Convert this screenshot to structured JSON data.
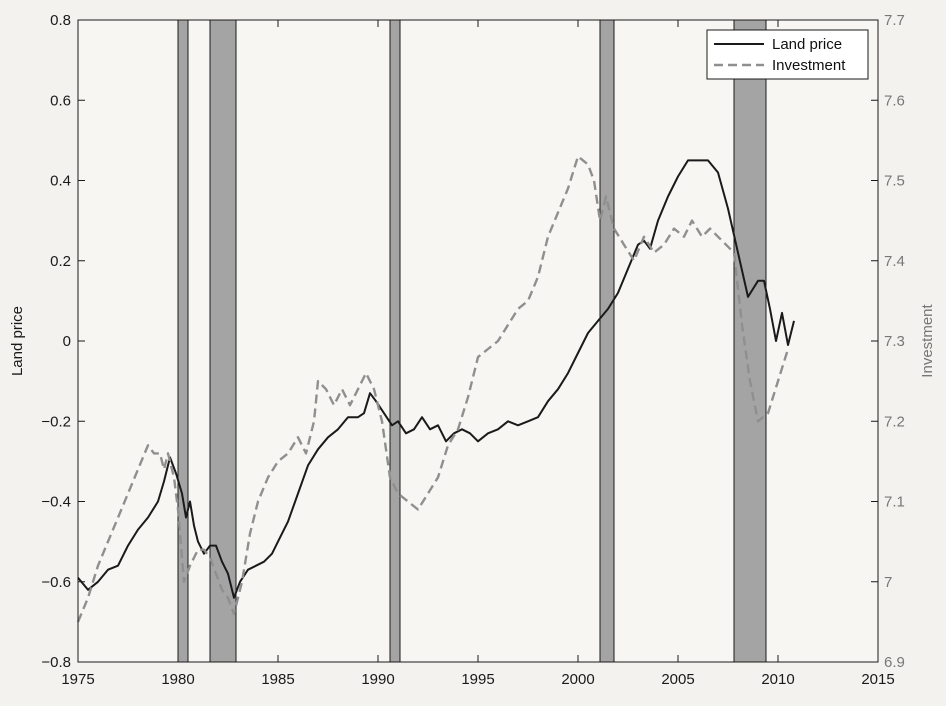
{
  "chart_data": {
    "type": "line",
    "title": "",
    "xlabel": "",
    "ylabel": "Land price",
    "y2label": "Investment",
    "xlim": [
      1975,
      2015
    ],
    "ylim": [
      -0.8,
      0.8
    ],
    "y2lim": [
      6.9,
      7.7
    ],
    "grid": false,
    "legend_position": "top-right",
    "x_ticks": [
      "1975",
      "1980",
      "1985",
      "1990",
      "1995",
      "2000",
      "2005",
      "2010",
      "2015"
    ],
    "y_ticks": [
      "−0.8",
      "−0.6",
      "−0.4",
      "−0.2",
      "0",
      "0.2",
      "0.4",
      "0.6",
      "0.8"
    ],
    "y2_ticks": [
      "6.9",
      "7",
      "7.1",
      "7.2",
      "7.3",
      "7.4",
      "7.5",
      "7.6",
      "7.7"
    ],
    "recession_bands": [
      [
        1980.0,
        1980.5
      ],
      [
        1981.6,
        1982.9
      ],
      [
        1990.6,
        1991.1
      ],
      [
        2001.1,
        2001.8
      ],
      [
        2007.8,
        2009.4
      ]
    ],
    "series": [
      {
        "name": "Land price",
        "axis": "left",
        "style": "solid",
        "color": "#1a1a1a",
        "points": [
          [
            1975.0,
            -0.59
          ],
          [
            1975.5,
            -0.62
          ],
          [
            1976.0,
            -0.6
          ],
          [
            1976.5,
            -0.57
          ],
          [
            1977.0,
            -0.56
          ],
          [
            1977.5,
            -0.51
          ],
          [
            1978.0,
            -0.47
          ],
          [
            1978.5,
            -0.44
          ],
          [
            1979.0,
            -0.4
          ],
          [
            1979.3,
            -0.35
          ],
          [
            1979.6,
            -0.29
          ],
          [
            1979.9,
            -0.33
          ],
          [
            1980.2,
            -0.38
          ],
          [
            1980.4,
            -0.44
          ],
          [
            1980.6,
            -0.4
          ],
          [
            1980.8,
            -0.46
          ],
          [
            1981.0,
            -0.5
          ],
          [
            1981.3,
            -0.53
          ],
          [
            1981.6,
            -0.51
          ],
          [
            1981.9,
            -0.51
          ],
          [
            1982.2,
            -0.55
          ],
          [
            1982.5,
            -0.58
          ],
          [
            1982.8,
            -0.64
          ],
          [
            1983.1,
            -0.6
          ],
          [
            1983.5,
            -0.57
          ],
          [
            1983.9,
            -0.56
          ],
          [
            1984.3,
            -0.55
          ],
          [
            1984.7,
            -0.53
          ],
          [
            1985.0,
            -0.5
          ],
          [
            1985.5,
            -0.45
          ],
          [
            1986.0,
            -0.38
          ],
          [
            1986.5,
            -0.31
          ],
          [
            1987.0,
            -0.27
          ],
          [
            1987.5,
            -0.24
          ],
          [
            1988.0,
            -0.22
          ],
          [
            1988.5,
            -0.19
          ],
          [
            1989.0,
            -0.19
          ],
          [
            1989.3,
            -0.18
          ],
          [
            1989.6,
            -0.13
          ],
          [
            1989.9,
            -0.15
          ],
          [
            1990.3,
            -0.18
          ],
          [
            1990.7,
            -0.21
          ],
          [
            1991.0,
            -0.2
          ],
          [
            1991.4,
            -0.23
          ],
          [
            1991.8,
            -0.22
          ],
          [
            1992.2,
            -0.19
          ],
          [
            1992.6,
            -0.22
          ],
          [
            1993.0,
            -0.21
          ],
          [
            1993.4,
            -0.25
          ],
          [
            1993.8,
            -0.23
          ],
          [
            1994.2,
            -0.22
          ],
          [
            1994.6,
            -0.23
          ],
          [
            1995.0,
            -0.25
          ],
          [
            1995.5,
            -0.23
          ],
          [
            1996.0,
            -0.22
          ],
          [
            1996.5,
            -0.2
          ],
          [
            1997.0,
            -0.21
          ],
          [
            1997.5,
            -0.2
          ],
          [
            1998.0,
            -0.19
          ],
          [
            1998.5,
            -0.15
          ],
          [
            1999.0,
            -0.12
          ],
          [
            1999.5,
            -0.08
          ],
          [
            2000.0,
            -0.03
          ],
          [
            2000.5,
            0.02
          ],
          [
            2001.0,
            0.05
          ],
          [
            2001.5,
            0.08
          ],
          [
            2002.0,
            0.12
          ],
          [
            2002.5,
            0.18
          ],
          [
            2003.0,
            0.24
          ],
          [
            2003.3,
            0.25
          ],
          [
            2003.6,
            0.23
          ],
          [
            2004.0,
            0.3
          ],
          [
            2004.5,
            0.36
          ],
          [
            2005.0,
            0.41
          ],
          [
            2005.5,
            0.45
          ],
          [
            2006.0,
            0.45
          ],
          [
            2006.5,
            0.45
          ],
          [
            2007.0,
            0.42
          ],
          [
            2007.5,
            0.33
          ],
          [
            2008.0,
            0.22
          ],
          [
            2008.5,
            0.11
          ],
          [
            2009.0,
            0.15
          ],
          [
            2009.3,
            0.15
          ],
          [
            2009.6,
            0.08
          ],
          [
            2009.9,
            0.0
          ],
          [
            2010.2,
            0.07
          ],
          [
            2010.5,
            -0.01
          ],
          [
            2010.8,
            0.05
          ]
        ]
      },
      {
        "name": "Investment",
        "axis": "right",
        "style": "dashed",
        "color": "#8f8f8f",
        "points": [
          [
            1975.0,
            6.95
          ],
          [
            1975.5,
            6.98
          ],
          [
            1976.0,
            7.02
          ],
          [
            1976.5,
            7.05
          ],
          [
            1977.0,
            7.08
          ],
          [
            1977.5,
            7.11
          ],
          [
            1978.0,
            7.14
          ],
          [
            1978.5,
            7.17
          ],
          [
            1978.8,
            7.16
          ],
          [
            1979.1,
            7.16
          ],
          [
            1979.3,
            7.14
          ],
          [
            1979.5,
            7.16
          ],
          [
            1979.8,
            7.13
          ],
          [
            1980.0,
            7.09
          ],
          [
            1980.3,
            7.0
          ],
          [
            1980.6,
            7.02
          ],
          [
            1981.0,
            7.04
          ],
          [
            1981.3,
            7.04
          ],
          [
            1981.6,
            7.03
          ],
          [
            1981.9,
            7.01
          ],
          [
            1982.2,
            6.99
          ],
          [
            1982.5,
            6.98
          ],
          [
            1982.8,
            6.96
          ],
          [
            1983.2,
            7.0
          ],
          [
            1983.6,
            7.06
          ],
          [
            1984.0,
            7.1
          ],
          [
            1984.5,
            7.13
          ],
          [
            1985.0,
            7.15
          ],
          [
            1985.5,
            7.16
          ],
          [
            1986.0,
            7.18
          ],
          [
            1986.4,
            7.16
          ],
          [
            1986.8,
            7.2
          ],
          [
            1987.0,
            7.25
          ],
          [
            1987.4,
            7.24
          ],
          [
            1987.8,
            7.22
          ],
          [
            1988.2,
            7.24
          ],
          [
            1988.6,
            7.22
          ],
          [
            1989.0,
            7.24
          ],
          [
            1989.4,
            7.26
          ],
          [
            1989.8,
            7.24
          ],
          [
            1990.2,
            7.2
          ],
          [
            1990.6,
            7.13
          ],
          [
            1991.0,
            7.11
          ],
          [
            1991.5,
            7.1
          ],
          [
            1992.0,
            7.09
          ],
          [
            1992.5,
            7.11
          ],
          [
            1993.0,
            7.13
          ],
          [
            1993.5,
            7.17
          ],
          [
            1994.0,
            7.19
          ],
          [
            1994.5,
            7.23
          ],
          [
            1995.0,
            7.28
          ],
          [
            1995.5,
            7.29
          ],
          [
            1996.0,
            7.3
          ],
          [
            1996.5,
            7.32
          ],
          [
            1997.0,
            7.34
          ],
          [
            1997.5,
            7.35
          ],
          [
            1998.0,
            7.38
          ],
          [
            1998.5,
            7.43
          ],
          [
            1999.0,
            7.46
          ],
          [
            1999.5,
            7.49
          ],
          [
            2000.0,
            7.53
          ],
          [
            2000.5,
            7.52
          ],
          [
            2000.8,
            7.5
          ],
          [
            2001.1,
            7.45
          ],
          [
            2001.4,
            7.48
          ],
          [
            2001.8,
            7.44
          ],
          [
            2002.3,
            7.42
          ],
          [
            2002.8,
            7.4
          ],
          [
            2003.3,
            7.43
          ],
          [
            2003.8,
            7.41
          ],
          [
            2004.3,
            7.42
          ],
          [
            2004.8,
            7.44
          ],
          [
            2005.3,
            7.43
          ],
          [
            2005.7,
            7.45
          ],
          [
            2006.2,
            7.43
          ],
          [
            2006.6,
            7.44
          ],
          [
            2007.0,
            7.43
          ],
          [
            2007.4,
            7.42
          ],
          [
            2007.8,
            7.41
          ],
          [
            2008.2,
            7.32
          ],
          [
            2008.6,
            7.25
          ],
          [
            2009.0,
            7.2
          ],
          [
            2009.5,
            7.21
          ],
          [
            2010.0,
            7.25
          ],
          [
            2010.5,
            7.29
          ]
        ]
      }
    ]
  }
}
